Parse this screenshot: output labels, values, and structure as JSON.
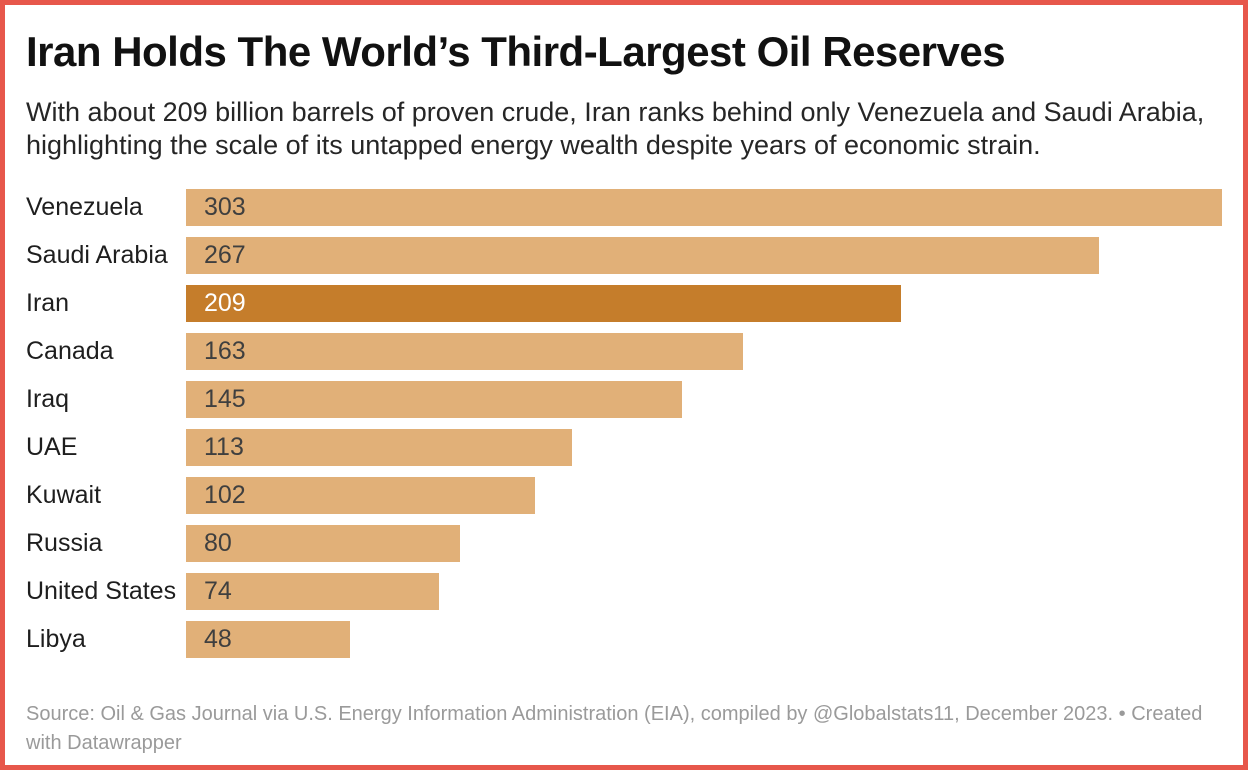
{
  "frame": {
    "border_color": "#e7574b",
    "background_color": "#ffffff"
  },
  "header": {
    "title": "Iran Holds The World’s Third-Largest Oil Reserves",
    "subtitle": "With about 209 billion barrels of proven crude, Iran ranks behind only Venezuela and Saudi Arabia, highlighting the scale of its untapped energy wealth despite years of economic strain."
  },
  "chart_data": {
    "type": "bar",
    "orientation": "horizontal",
    "title": "Iran Holds The World’s Third-Largest Oil Reserves",
    "categories": [
      "Venezuela",
      "Saudi Arabia",
      "Iran",
      "Canada",
      "Iraq",
      "UAE",
      "Kuwait",
      "Russia",
      "United States",
      "Libya"
    ],
    "values": [
      303,
      267,
      209,
      163,
      145,
      113,
      102,
      80,
      74,
      48
    ],
    "value_labels": [
      "303",
      "267",
      "209",
      "163",
      "145",
      "113",
      "102",
      "80",
      "74",
      "48"
    ],
    "unit": "billion barrels",
    "xlim": [
      0,
      303
    ],
    "grid": false,
    "legend": false,
    "highlight_category": "Iran",
    "highlight_index": 2,
    "bar_color": "#e1b078",
    "highlight_color": "#c57d2b",
    "value_label_color": "#3f3f3f",
    "highlight_value_label_color": "#ffffff"
  },
  "footer": {
    "source": "Source: Oil & Gas Journal via U.S. Energy Information Administration (EIA), compiled by @Globalstats11, December 2023.",
    "separator": "•",
    "created": "Created with Datawrapper"
  }
}
